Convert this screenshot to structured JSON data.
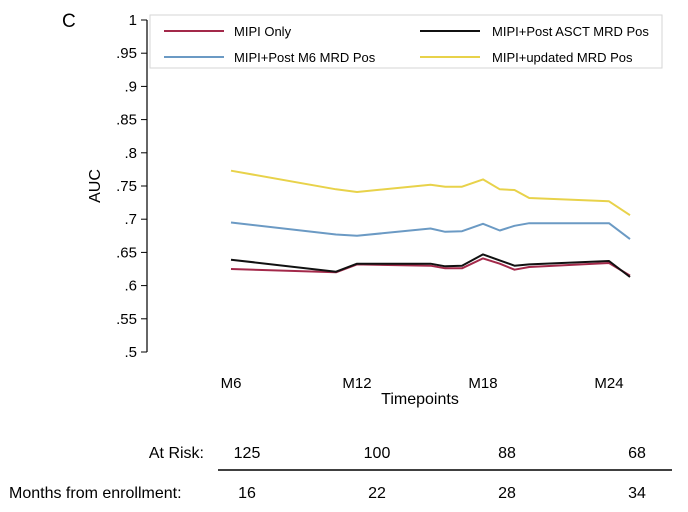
{
  "panel_label": "C",
  "chart_data": {
    "type": "line",
    "title": "",
    "xlabel": "Timepoints",
    "ylabel": "AUC",
    "xlim": [
      2,
      27
    ],
    "ylim": [
      0.5,
      1.0
    ],
    "yticks": [
      0.5,
      0.55,
      0.6,
      0.65,
      0.7,
      0.75,
      0.8,
      0.85,
      0.9,
      0.95,
      1.0
    ],
    "ytick_labels": [
      ".5",
      ".55",
      ".6",
      ".65",
      ".7",
      ".75",
      ".8",
      ".85",
      ".9",
      ".95",
      "1"
    ],
    "xticks": [
      6,
      12,
      18,
      24
    ],
    "xtick_labels": [
      "M6",
      "M12",
      "M18",
      "M24"
    ],
    "grid": false,
    "legend_position": "top",
    "series": [
      {
        "name": "MIPI Only",
        "color": "#a3294a",
        "x": [
          6,
          11,
          12,
          15.5,
          16.2,
          17,
          18,
          18.8,
          19.5,
          20.2,
          24,
          25
        ],
        "y": [
          0.625,
          0.62,
          0.632,
          0.63,
          0.626,
          0.626,
          0.641,
          0.633,
          0.624,
          0.628,
          0.634,
          0.615
        ]
      },
      {
        "name": "MIPI+Post ASCT MRD Pos",
        "color": "#111111",
        "x": [
          6,
          11,
          12,
          15.5,
          16.2,
          17,
          18,
          18.8,
          19.5,
          20.2,
          24,
          25
        ],
        "y": [
          0.639,
          0.621,
          0.633,
          0.633,
          0.629,
          0.63,
          0.647,
          0.638,
          0.63,
          0.632,
          0.637,
          0.613
        ]
      },
      {
        "name": "MIPI+Post M6 MRD Pos",
        "color": "#6b9ac4",
        "x": [
          6,
          11,
          12,
          15.5,
          16.2,
          17,
          18,
          18.8,
          19.5,
          20.2,
          24,
          25
        ],
        "y": [
          0.695,
          0.677,
          0.675,
          0.686,
          0.681,
          0.682,
          0.693,
          0.683,
          0.69,
          0.694,
          0.694,
          0.67
        ]
      },
      {
        "name": "MIPI+updated MRD Pos",
        "color": "#e8d24a",
        "x": [
          6,
          11,
          12,
          15.5,
          16.2,
          17,
          18,
          18.8,
          19.5,
          20.2,
          24,
          25
        ],
        "y": [
          0.773,
          0.745,
          0.741,
          0.752,
          0.749,
          0.749,
          0.76,
          0.745,
          0.744,
          0.732,
          0.727,
          0.706
        ]
      }
    ]
  },
  "risk_table": {
    "at_risk_label": "At Risk:",
    "at_risk": [
      "125",
      "100",
      "88",
      "68"
    ],
    "months_label": "Months from enrollment:",
    "months": [
      "16",
      "22",
      "28",
      "34"
    ]
  }
}
